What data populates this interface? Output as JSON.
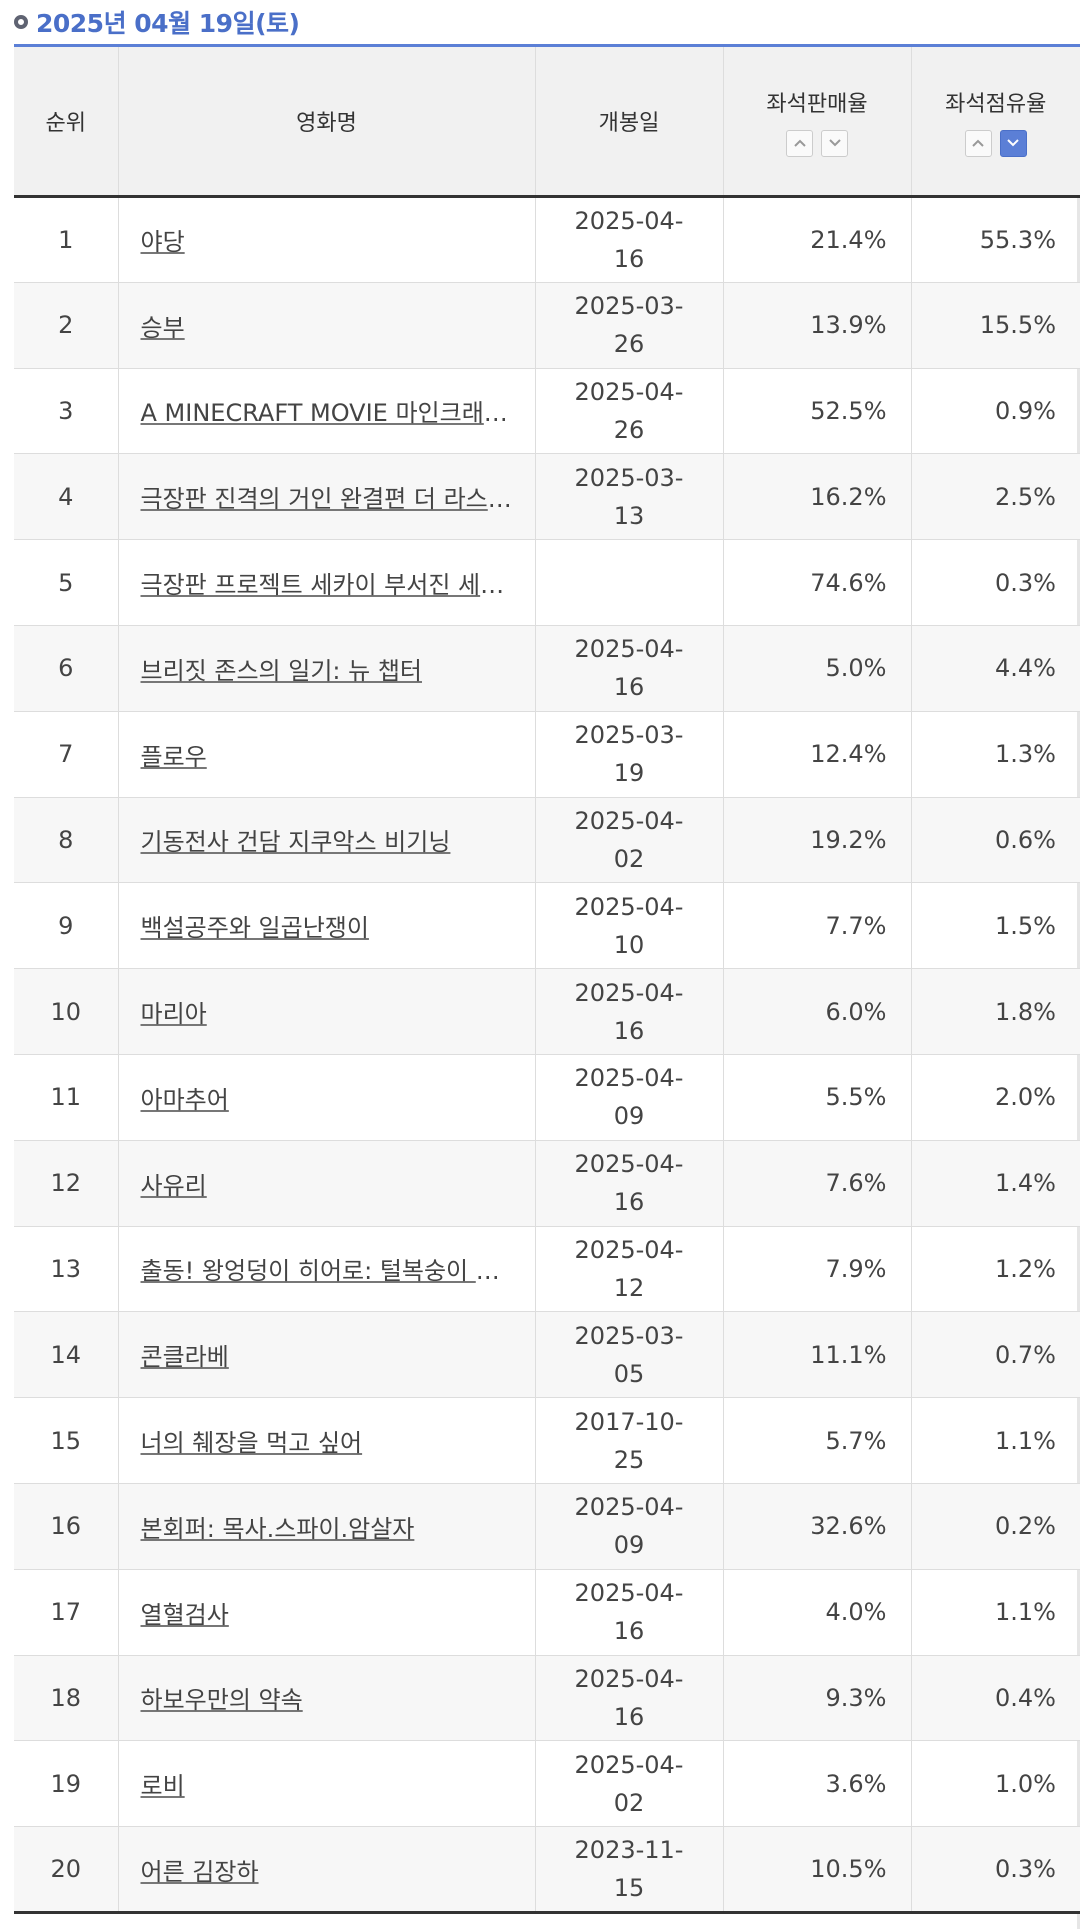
{
  "header": {
    "date_title": "2025년 04월 19일(토)"
  },
  "columns": {
    "rank": "순위",
    "title": "영화명",
    "release": "개봉일",
    "sales": "좌석판매율",
    "occupancy": "좌석점유율"
  },
  "sort": {
    "sales_active": "none",
    "occupancy_active": "desc",
    "up_icon": "chevron-up-icon",
    "down_icon": "chevron-down-icon"
  },
  "colors": {
    "accent": "#5b7fd6",
    "header_bg": "#f1f1f1"
  },
  "rows": [
    {
      "rank": "1",
      "title": "야당",
      "release": "2025-04-16",
      "sales": "21.4%",
      "occupancy": "55.3%"
    },
    {
      "rank": "2",
      "title": "승부",
      "release": "2025-03-26",
      "sales": "13.9%",
      "occupancy": "15.5%"
    },
    {
      "rank": "3",
      "title": "A MINECRAFT MOVIE 마인크래프트 무비",
      "release": "2025-04-26",
      "sales": "52.5%",
      "occupancy": "0.9%"
    },
    {
      "rank": "4",
      "title": "극장판 진격의 거인 완결편 더 라스트 어택",
      "release": "2025-03-13",
      "sales": "16.2%",
      "occupancy": "2.5%"
    },
    {
      "rank": "5",
      "title": "극장판 프로젝트 세카이 부서진 세카이와 전해지지 않는 미쿠의 노래",
      "release": "",
      "sales": "74.6%",
      "occupancy": "0.3%"
    },
    {
      "rank": "6",
      "title": "브리짓 존스의 일기: 뉴 챕터",
      "release": "2025-04-16",
      "sales": "5.0%",
      "occupancy": "4.4%"
    },
    {
      "rank": "7",
      "title": "플로우",
      "release": "2025-03-19",
      "sales": "12.4%",
      "occupancy": "1.3%"
    },
    {
      "rank": "8",
      "title": "기동전사 건담 지쿠악스 비기닝",
      "release": "2025-04-02",
      "sales": "19.2%",
      "occupancy": "0.6%"
    },
    {
      "rank": "9",
      "title": "백설공주와 일곱난쟁이",
      "release": "2025-04-10",
      "sales": "7.7%",
      "occupancy": "1.5%"
    },
    {
      "rank": "10",
      "title": "마리아",
      "release": "2025-04-16",
      "sales": "6.0%",
      "occupancy": "1.8%"
    },
    {
      "rank": "11",
      "title": "아마추어",
      "release": "2025-04-09",
      "sales": "5.5%",
      "occupancy": "2.0%"
    },
    {
      "rank": "12",
      "title": "사유리",
      "release": "2025-04-16",
      "sales": "7.6%",
      "occupancy": "1.4%"
    },
    {
      "rank": "13",
      "title": "출동! 왕엉덩이 히어로: 털복숭이 꼬마 엉덩이",
      "release": "2025-04-12",
      "sales": "7.9%",
      "occupancy": "1.2%"
    },
    {
      "rank": "14",
      "title": "콘클라베",
      "release": "2025-03-05",
      "sales": "11.1%",
      "occupancy": "0.7%"
    },
    {
      "rank": "15",
      "title": "너의 췌장을 먹고 싶어",
      "release": "2017-10-25",
      "sales": "5.7%",
      "occupancy": "1.1%"
    },
    {
      "rank": "16",
      "title": "본회퍼: 목사.스파이.암살자",
      "release": "2025-04-09",
      "sales": "32.6%",
      "occupancy": "0.2%"
    },
    {
      "rank": "17",
      "title": "열혈검사",
      "release": "2025-04-16",
      "sales": "4.0%",
      "occupancy": "1.1%"
    },
    {
      "rank": "18",
      "title": "하보우만의 약속",
      "release": "2025-04-16",
      "sales": "9.3%",
      "occupancy": "0.4%"
    },
    {
      "rank": "19",
      "title": "로비",
      "release": "2025-04-02",
      "sales": "3.6%",
      "occupancy": "1.0%"
    },
    {
      "rank": "20",
      "title": "어른 김장하",
      "release": "2023-11-15",
      "sales": "10.5%",
      "occupancy": "0.3%"
    }
  ]
}
